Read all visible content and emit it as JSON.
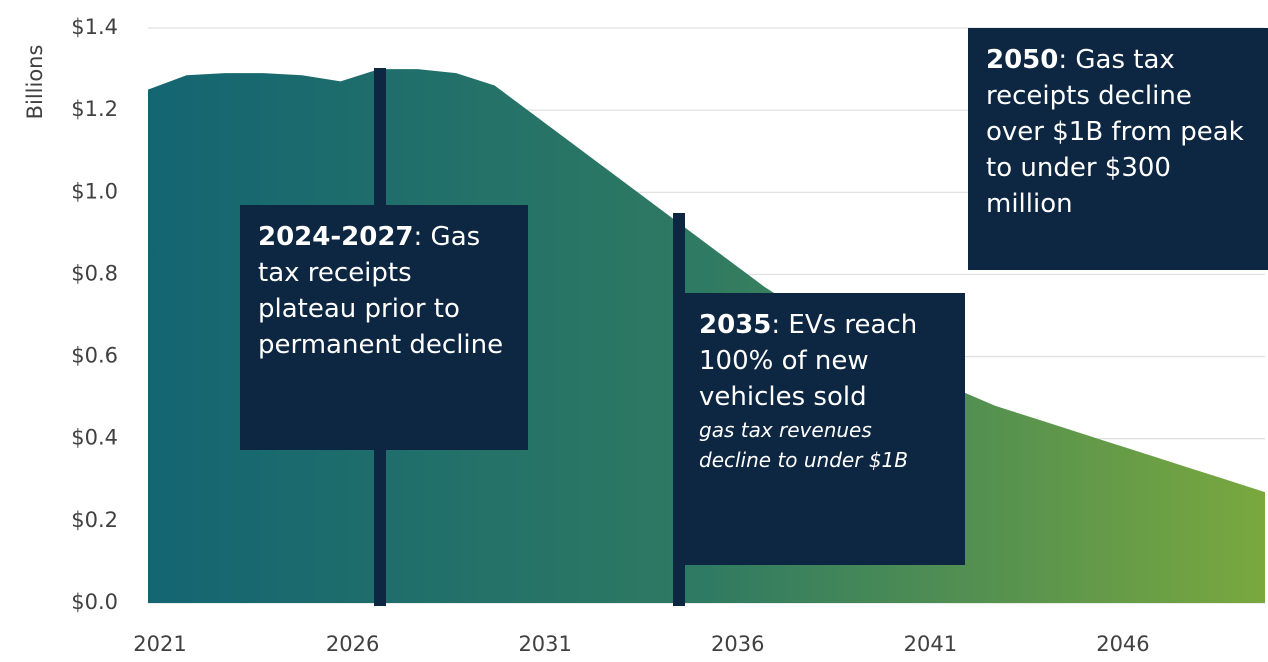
{
  "chart_data": {
    "type": "area",
    "y_axis_label": "Billions",
    "x": [
      2021,
      2022,
      2023,
      2024,
      2025,
      2026,
      2027,
      2028,
      2029,
      2030,
      2031,
      2032,
      2033,
      2034,
      2035,
      2036,
      2037,
      2038,
      2039,
      2040,
      2041,
      2042,
      2043,
      2044,
      2045,
      2046,
      2047,
      2048,
      2049,
      2050
    ],
    "values": [
      1.25,
      1.285,
      1.29,
      1.29,
      1.285,
      1.27,
      1.3,
      1.3,
      1.29,
      1.26,
      1.19,
      1.12,
      1.05,
      0.98,
      0.91,
      0.84,
      0.77,
      0.71,
      0.65,
      0.6,
      0.56,
      0.52,
      0.48,
      0.45,
      0.42,
      0.39,
      0.36,
      0.33,
      0.3,
      0.27
    ],
    "colors": [
      "#136572",
      "#2f7a62",
      "#7aa83e"
    ],
    "xlim": [
      2021,
      2050
    ],
    "xticks": [
      2021,
      2026,
      2031,
      2036,
      2041,
      2046
    ],
    "ylim": [
      0,
      1.4
    ],
    "yticks": [
      {
        "value": 0,
        "label": "$0.0"
      },
      {
        "value": 0.2,
        "label": "$0.2"
      },
      {
        "value": 0.4,
        "label": "$0.4"
      },
      {
        "value": 0.6,
        "label": "$0.6"
      },
      {
        "value": 0.8,
        "label": "$0.8"
      },
      {
        "value": 1.0,
        "label": "$1.0"
      },
      {
        "value": 1.2,
        "label": "$1.2"
      },
      {
        "value": 1.4,
        "label": "$1.4"
      }
    ],
    "grid": true,
    "annotations": [
      {
        "label": "2024-2027",
        "text": ": Gas tax receipts plateau prior to permanent decline"
      },
      {
        "label": "2035",
        "text": ": EVs reach 100% of new vehicles sold",
        "note": "gas tax revenues decline to under $1B"
      },
      {
        "label": "2050",
        "text": ": Gas tax receipts decline over $1B from peak to under $300 million"
      }
    ]
  }
}
